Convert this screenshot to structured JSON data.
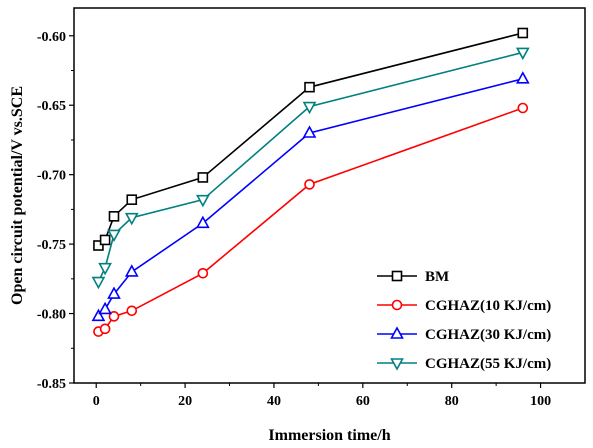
{
  "chart_data": {
    "type": "line",
    "title": "",
    "xlabel": "Immersion time/h",
    "ylabel": "Open circuit potential/V vs.SCE",
    "xlim": [
      -5,
      110
    ],
    "ylim": [
      -0.85,
      -0.58
    ],
    "xticks": [
      0,
      20,
      40,
      60,
      80,
      100
    ],
    "yticks": [
      -0.85,
      -0.8,
      -0.75,
      -0.7,
      -0.65,
      -0.6
    ],
    "xtick_labels": [
      "0",
      "20",
      "40",
      "60",
      "80",
      "100"
    ],
    "ytick_labels": [
      "-0.85",
      "-0.80",
      "-0.75",
      "-0.70",
      "-0.65",
      "-0.60"
    ],
    "grid": false,
    "legend_position": "bottom-right",
    "x": [
      0.5,
      2,
      4,
      8,
      24,
      48,
      96
    ],
    "series": [
      {
        "name": "BM",
        "color": "#000000",
        "marker": "square",
        "values": [
          -0.751,
          -0.747,
          -0.73,
          -0.718,
          -0.702,
          -0.637,
          -0.598
        ]
      },
      {
        "name": "CGHAZ(10 KJ/cm)",
        "color": "#ff0000",
        "marker": "circle",
        "values": [
          -0.813,
          -0.811,
          -0.802,
          -0.798,
          -0.771,
          -0.707,
          -0.652
        ]
      },
      {
        "name": "CGHAZ(30 KJ/cm)",
        "color": "#0000ff",
        "marker": "triangle-up",
        "values": [
          -0.802,
          -0.797,
          -0.786,
          -0.77,
          -0.735,
          -0.67,
          -0.631
        ]
      },
      {
        "name": "CGHAZ(55 KJ/cm)",
        "color": "#008080",
        "marker": "triangle-down",
        "values": [
          -0.777,
          -0.767,
          -0.743,
          -0.731,
          -0.718,
          -0.651,
          -0.612
        ]
      }
    ]
  }
}
